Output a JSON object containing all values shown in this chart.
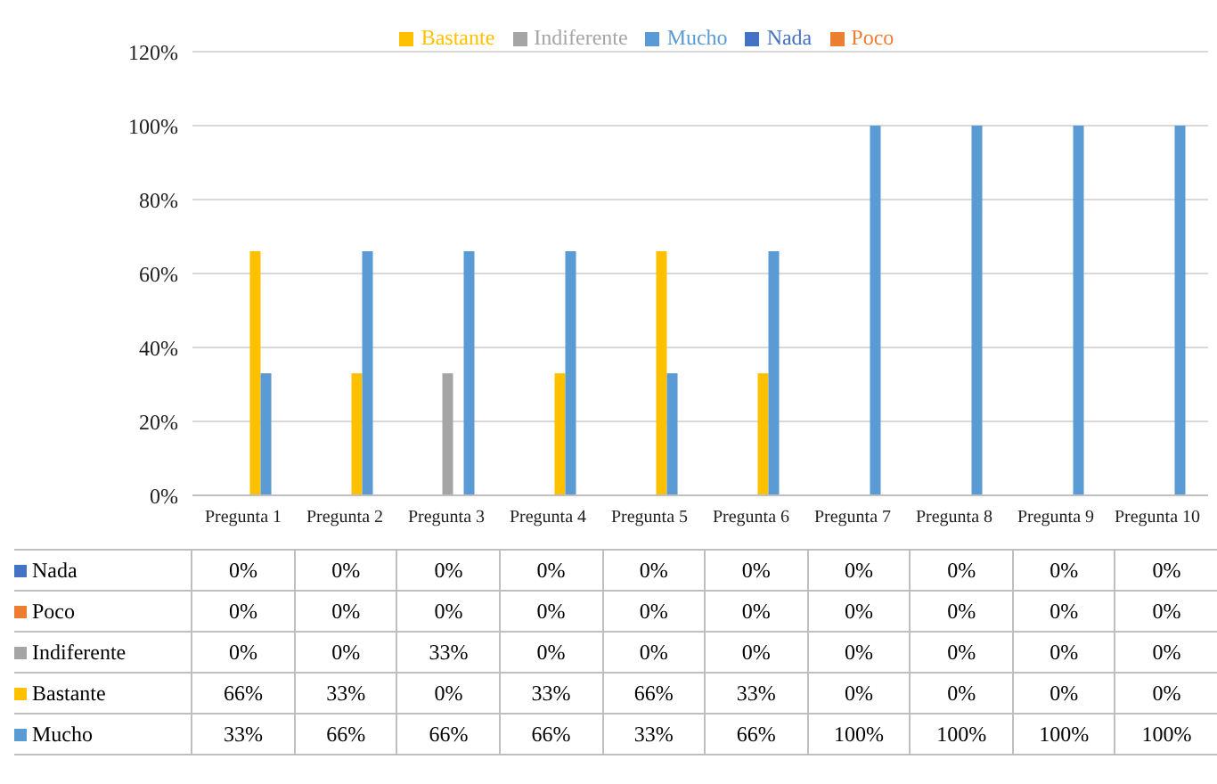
{
  "chart_data": {
    "type": "bar",
    "categories": [
      "Pregunta 1",
      "Pregunta 2",
      "Pregunta 3",
      "Pregunta 4",
      "Pregunta 5",
      "Pregunta 6",
      "Pregunta 7",
      "Pregunta 8",
      "Pregunta 9",
      "Pregunta 10"
    ],
    "series": [
      {
        "name": "Nada",
        "color": "#4472c4",
        "values": [
          0,
          0,
          0,
          0,
          0,
          0,
          0,
          0,
          0,
          0
        ],
        "value_labels": [
          "0%",
          "0%",
          "0%",
          "0%",
          "0%",
          "0%",
          "0%",
          "0%",
          "0%",
          "0%"
        ]
      },
      {
        "name": "Poco",
        "color": "#ed7d31",
        "values": [
          0,
          0,
          0,
          0,
          0,
          0,
          0,
          0,
          0,
          0
        ],
        "value_labels": [
          "0%",
          "0%",
          "0%",
          "0%",
          "0%",
          "0%",
          "0%",
          "0%",
          "0%",
          "0%"
        ]
      },
      {
        "name": "Indiferente",
        "color": "#a5a5a5",
        "values": [
          0,
          0,
          33,
          0,
          0,
          0,
          0,
          0,
          0,
          0
        ],
        "value_labels": [
          "0%",
          "0%",
          "33%",
          "0%",
          "0%",
          "0%",
          "0%",
          "0%",
          "0%",
          "0%"
        ]
      },
      {
        "name": "Bastante",
        "color": "#ffc000",
        "values": [
          66,
          33,
          0,
          33,
          66,
          33,
          0,
          0,
          0,
          0
        ],
        "value_labels": [
          "66%",
          "33%",
          "0%",
          "33%",
          "66%",
          "33%",
          "0%",
          "0%",
          "0%",
          "0%"
        ]
      },
      {
        "name": "Mucho",
        "color": "#5b9bd5",
        "values": [
          33,
          66,
          66,
          66,
          33,
          66,
          100,
          100,
          100,
          100
        ],
        "value_labels": [
          "33%",
          "66%",
          "66%",
          "66%",
          "33%",
          "66%",
          "100%",
          "100%",
          "100%",
          "100%"
        ]
      }
    ],
    "ylim": [
      0,
      120
    ],
    "yticks": [
      {
        "value": 0,
        "label": "0%"
      },
      {
        "value": 20,
        "label": "20%"
      },
      {
        "value": 40,
        "label": "40%"
      },
      {
        "value": 60,
        "label": "60%"
      },
      {
        "value": 80,
        "label": "80%"
      },
      {
        "value": 100,
        "label": "100%"
      },
      {
        "value": 120,
        "label": "120%"
      }
    ],
    "grid": "y",
    "legend": "top"
  }
}
